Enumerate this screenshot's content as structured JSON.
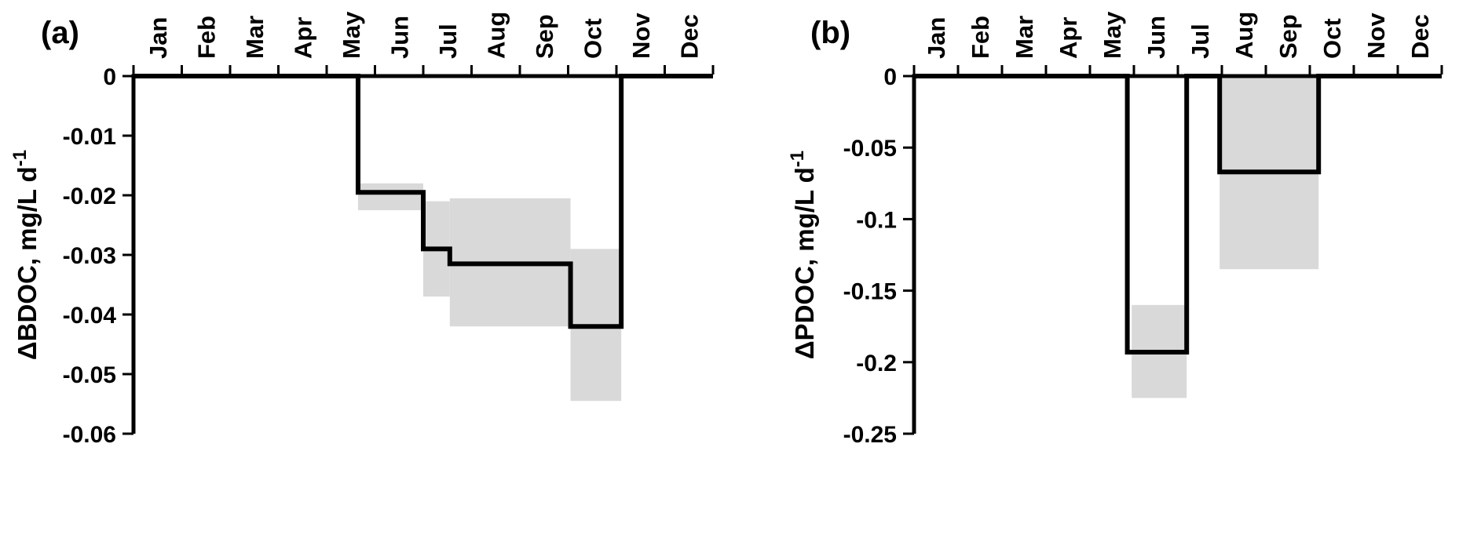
{
  "figure": {
    "background": "#ffffff",
    "band_color": "#d9d9d9",
    "line_color": "#000000",
    "axis_color": "#000000"
  },
  "chart_data": [
    {
      "type": "step",
      "panel_label": "(a)",
      "title": "",
      "xlabel": "",
      "ylabel": "ΔBDOC, mg/L d",
      "ylabel_superscript": "-1",
      "x_categories": [
        "Jan",
        "Feb",
        "Mar",
        "Apr",
        "May",
        "Jun",
        "Jul",
        "Aug",
        "Sep",
        "Oct",
        "Nov",
        "Dec"
      ],
      "x_range_months": [
        0,
        12
      ],
      "ylim": [
        -0.06,
        0
      ],
      "yticks": [
        {
          "label": "0",
          "value": 0
        },
        {
          "label": "-0.01",
          "value": -0.01
        },
        {
          "label": "-0.02",
          "value": -0.02
        },
        {
          "label": "-0.03",
          "value": -0.03
        },
        {
          "label": "-0.04",
          "value": -0.04
        },
        {
          "label": "-0.05",
          "value": -0.05
        },
        {
          "label": "-0.06",
          "value": -0.06
        }
      ],
      "step_segments": [
        {
          "x_start": 0,
          "x_end": 4.65,
          "y": 0
        },
        {
          "x_start": 4.65,
          "x_end": 6.0,
          "y": -0.0195
        },
        {
          "x_start": 6.0,
          "x_end": 6.55,
          "y": -0.029
        },
        {
          "x_start": 6.55,
          "x_end": 9.05,
          "y": -0.0315
        },
        {
          "x_start": 9.05,
          "x_end": 10.1,
          "y": -0.042
        },
        {
          "x_start": 10.1,
          "x_end": 12,
          "y": 0
        }
      ],
      "uncertainty_bands": [
        {
          "x_start": 4.65,
          "x_end": 6.0,
          "y_top": -0.018,
          "y_bottom": -0.0225
        },
        {
          "x_start": 6.0,
          "x_end": 6.55,
          "y_top": -0.021,
          "y_bottom": -0.037
        },
        {
          "x_start": 6.55,
          "x_end": 9.05,
          "y_top": -0.0205,
          "y_bottom": -0.042
        },
        {
          "x_start": 9.05,
          "x_end": 10.1,
          "y_top": -0.029,
          "y_bottom": -0.0545
        }
      ]
    },
    {
      "type": "step",
      "panel_label": "(b)",
      "title": "",
      "xlabel": "",
      "ylabel": "ΔPDOC, mg/L d",
      "ylabel_superscript": "-1",
      "x_categories": [
        "Jan",
        "Feb",
        "Mar",
        "Apr",
        "May",
        "Jun",
        "Jul",
        "Aug",
        "Sep",
        "Oct",
        "Nov",
        "Dec"
      ],
      "x_range_months": [
        0,
        12
      ],
      "ylim": [
        -0.25,
        0
      ],
      "yticks": [
        {
          "label": "0",
          "value": 0
        },
        {
          "label": "-0.05",
          "value": -0.05
        },
        {
          "label": "-0.1",
          "value": -0.1
        },
        {
          "label": "-0.15",
          "value": -0.15
        },
        {
          "label": "-0.2",
          "value": -0.2
        },
        {
          "label": "-0.25",
          "value": -0.25
        }
      ],
      "step_segments": [
        {
          "x_start": 0,
          "x_end": 4.85,
          "y": 0
        },
        {
          "x_start": 4.85,
          "x_end": 6.2,
          "y": -0.193
        },
        {
          "x_start": 6.2,
          "x_end": 6.95,
          "y": 0
        },
        {
          "x_start": 6.95,
          "x_end": 9.2,
          "y": -0.067
        },
        {
          "x_start": 9.2,
          "x_end": 12,
          "y": 0
        }
      ],
      "uncertainty_bands": [
        {
          "x_start": 4.95,
          "x_end": 6.2,
          "y_top": -0.16,
          "y_bottom": -0.225
        },
        {
          "x_start": 6.95,
          "x_end": 9.2,
          "y_top": 0,
          "y_bottom": -0.135
        }
      ]
    }
  ]
}
